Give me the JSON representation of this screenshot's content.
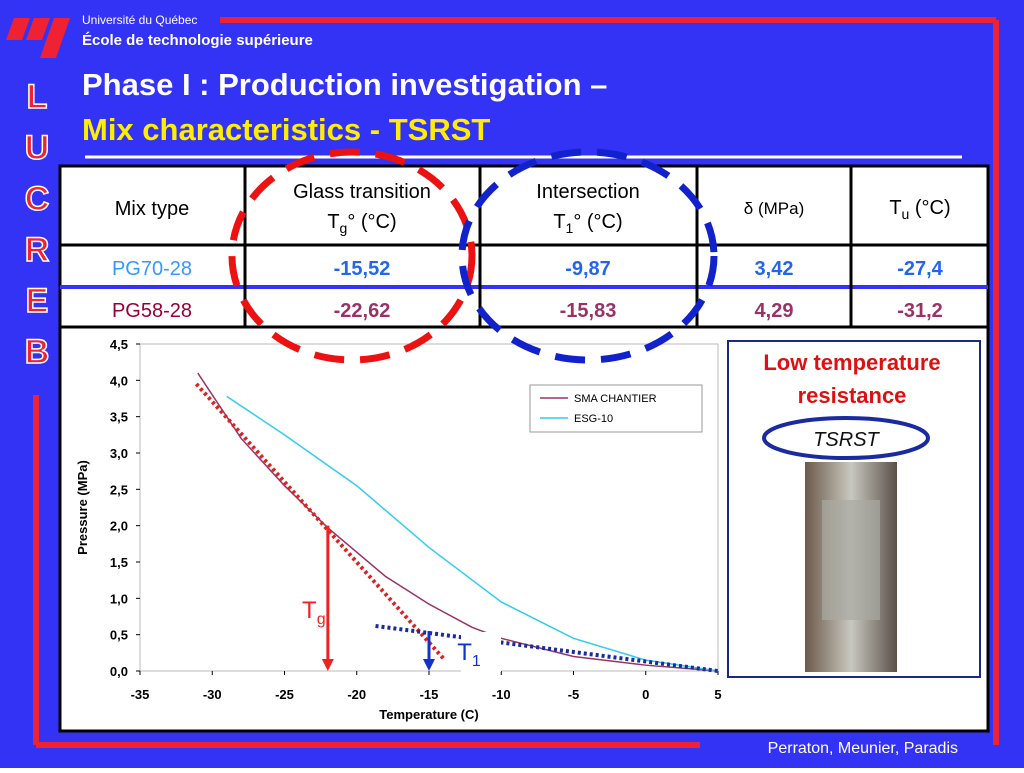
{
  "header": {
    "university": "Université du Québec",
    "school": "École de technologie supérieure",
    "logo": [
      "L",
      "U",
      "C",
      "R",
      "E",
      "B"
    ]
  },
  "title": {
    "line1": "Phase I : Production investigation –",
    "line2": "Mix characteristics - TSRST"
  },
  "table": {
    "header": {
      "mix": "Mix type",
      "glass": "Glass transition",
      "glass_sym": "T",
      "glass_sub": "g",
      "glass_unit": "° (°C)",
      "inter": "Intersection",
      "inter_sym": "T",
      "inter_sub": "1",
      "inter_unit": "° (°C)",
      "delta": "δ (MPa)",
      "tu_sym": "T",
      "tu_sub": "u",
      "tu_unit": " (°C)"
    },
    "rows": [
      [
        "PG70-28",
        "-15,52",
        "-9,87",
        "3,42",
        "-27,4"
      ],
      [
        "PG58-28",
        "-22,62",
        "-15,83",
        "4,29",
        "-31,2"
      ]
    ]
  },
  "chart_data": {
    "type": "line",
    "xlabel": "Temperature (C)",
    "ylabel": "Pressure (MPa)",
    "xlim": [
      -35,
      5
    ],
    "ylim": [
      0,
      4.5
    ],
    "xticks": [
      -35,
      -30,
      -25,
      -20,
      -15,
      -10,
      -5,
      0,
      5
    ],
    "yticks": [
      {
        "value": 0,
        "label": "0,0"
      },
      {
        "value": 0.5,
        "label": "0,5"
      },
      {
        "value": 1,
        "label": "1,0"
      },
      {
        "value": 1.5,
        "label": "1,5"
      },
      {
        "value": 2,
        "label": "2,0"
      },
      {
        "value": 2.5,
        "label": "2,5"
      },
      {
        "value": 3,
        "label": "3,0"
      },
      {
        "value": 3.5,
        "label": "3,5"
      },
      {
        "value": 4,
        "label": "4,0"
      },
      {
        "value": 4.5,
        "label": "4,5"
      }
    ],
    "series": [
      {
        "name": "SMA CHANTIER",
        "color": "#993366",
        "x": [
          -31,
          -28,
          -25,
          -22,
          -18,
          -15,
          -12,
          -10,
          -5,
          0,
          5
        ],
        "values": [
          4.1,
          3.2,
          2.55,
          1.97,
          1.3,
          0.92,
          0.6,
          0.45,
          0.2,
          0.08,
          0
        ]
      },
      {
        "name": "ESG-10",
        "color": "#33ccee",
        "x": [
          -29,
          -25,
          -20,
          -15,
          -10,
          -5,
          0,
          5
        ],
        "values": [
          3.78,
          3.25,
          2.55,
          1.7,
          0.95,
          0.45,
          0.15,
          0
        ]
      }
    ],
    "tangents": [
      {
        "color": "#dd2222",
        "x": [
          -31.1,
          -13.9
        ],
        "values": [
          3.95,
          0.15
        ]
      },
      {
        "color": "#1a2aa0",
        "x": [
          -18.7,
          5
        ],
        "values": [
          0.62,
          0
        ]
      }
    ],
    "markers": [
      {
        "sym": "T",
        "sub": "g",
        "color": "#ee2222",
        "x": -22,
        "values": [
          2,
          0
        ]
      },
      {
        "sym": "T",
        "sub": "1",
        "color": "#1133cc",
        "x": -15,
        "values": [
          0.55,
          0
        ]
      }
    ]
  },
  "panel": {
    "title1": "Low temperature",
    "title2": "resistance",
    "badge": "TSRST"
  },
  "footer": "Perraton, Meunier, Paradis"
}
